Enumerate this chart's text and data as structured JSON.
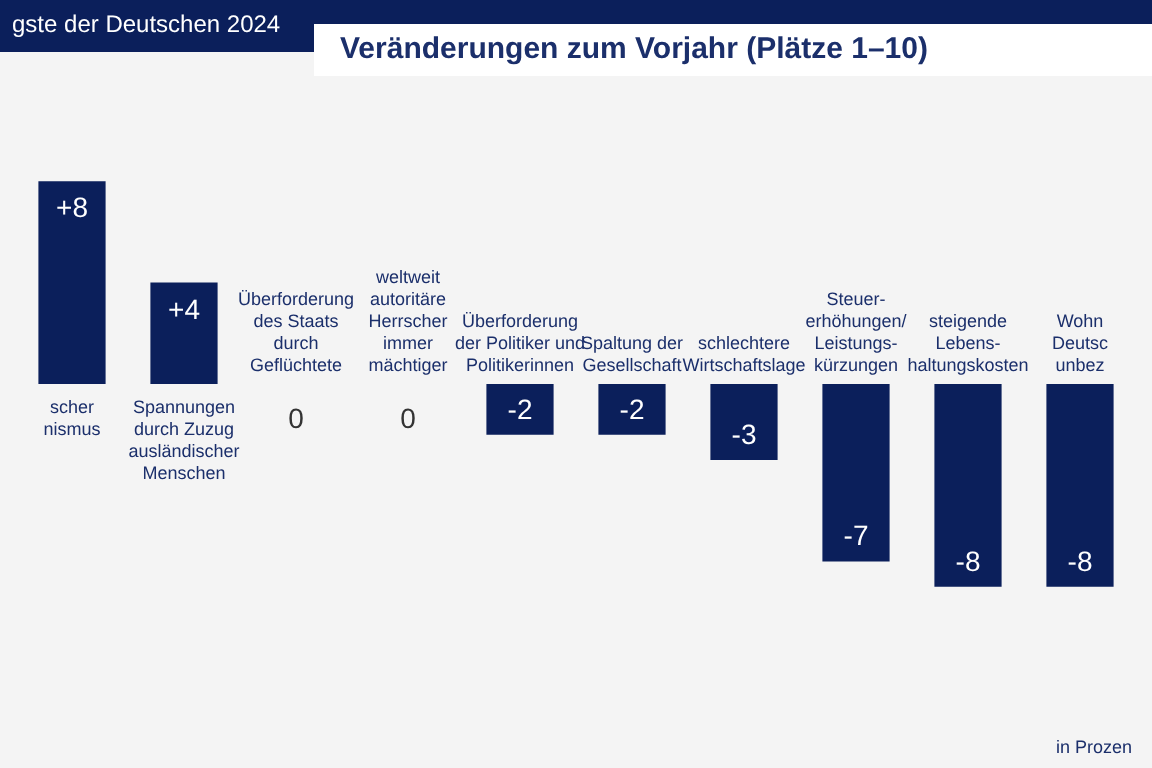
{
  "chart_data": {
    "type": "bar",
    "title": "gste der Deutschen 2024",
    "subtitle": "Veränderungen zum Vorjahr (Plätze 1–10)",
    "annotations": [
      "in Prozen"
    ],
    "categories": [
      "scher\nnismus",
      "Spannungen\ndurch Zuzug\nausländischer\nMenschen",
      "Überforderung\ndes Staats\ndurch\nGeflüchtete",
      "weltweit\nautoritäre\nHerrscher\nimmer\nmächtiger",
      "Überforderung\nder Politiker und\nPolitikerinnen",
      "Spaltung der\nGesellschaft",
      "schlechtere\nWirtschaftslage",
      "Steuer-\nerhöhungen/\nLeistungs-\nkürzungen",
      "steigende\nLebens-\nhaltungskosten",
      "Wohn\nDeutsc\nunbez"
    ],
    "values": [
      8,
      4,
      0,
      0,
      -2,
      -2,
      -3,
      -7,
      -8,
      -8
    ],
    "value_labels": [
      "+8",
      "+4",
      "0",
      "0",
      "-2",
      "-2",
      "-3",
      "-7",
      "-8",
      "-8"
    ],
    "color": "#0b1f5b"
  }
}
